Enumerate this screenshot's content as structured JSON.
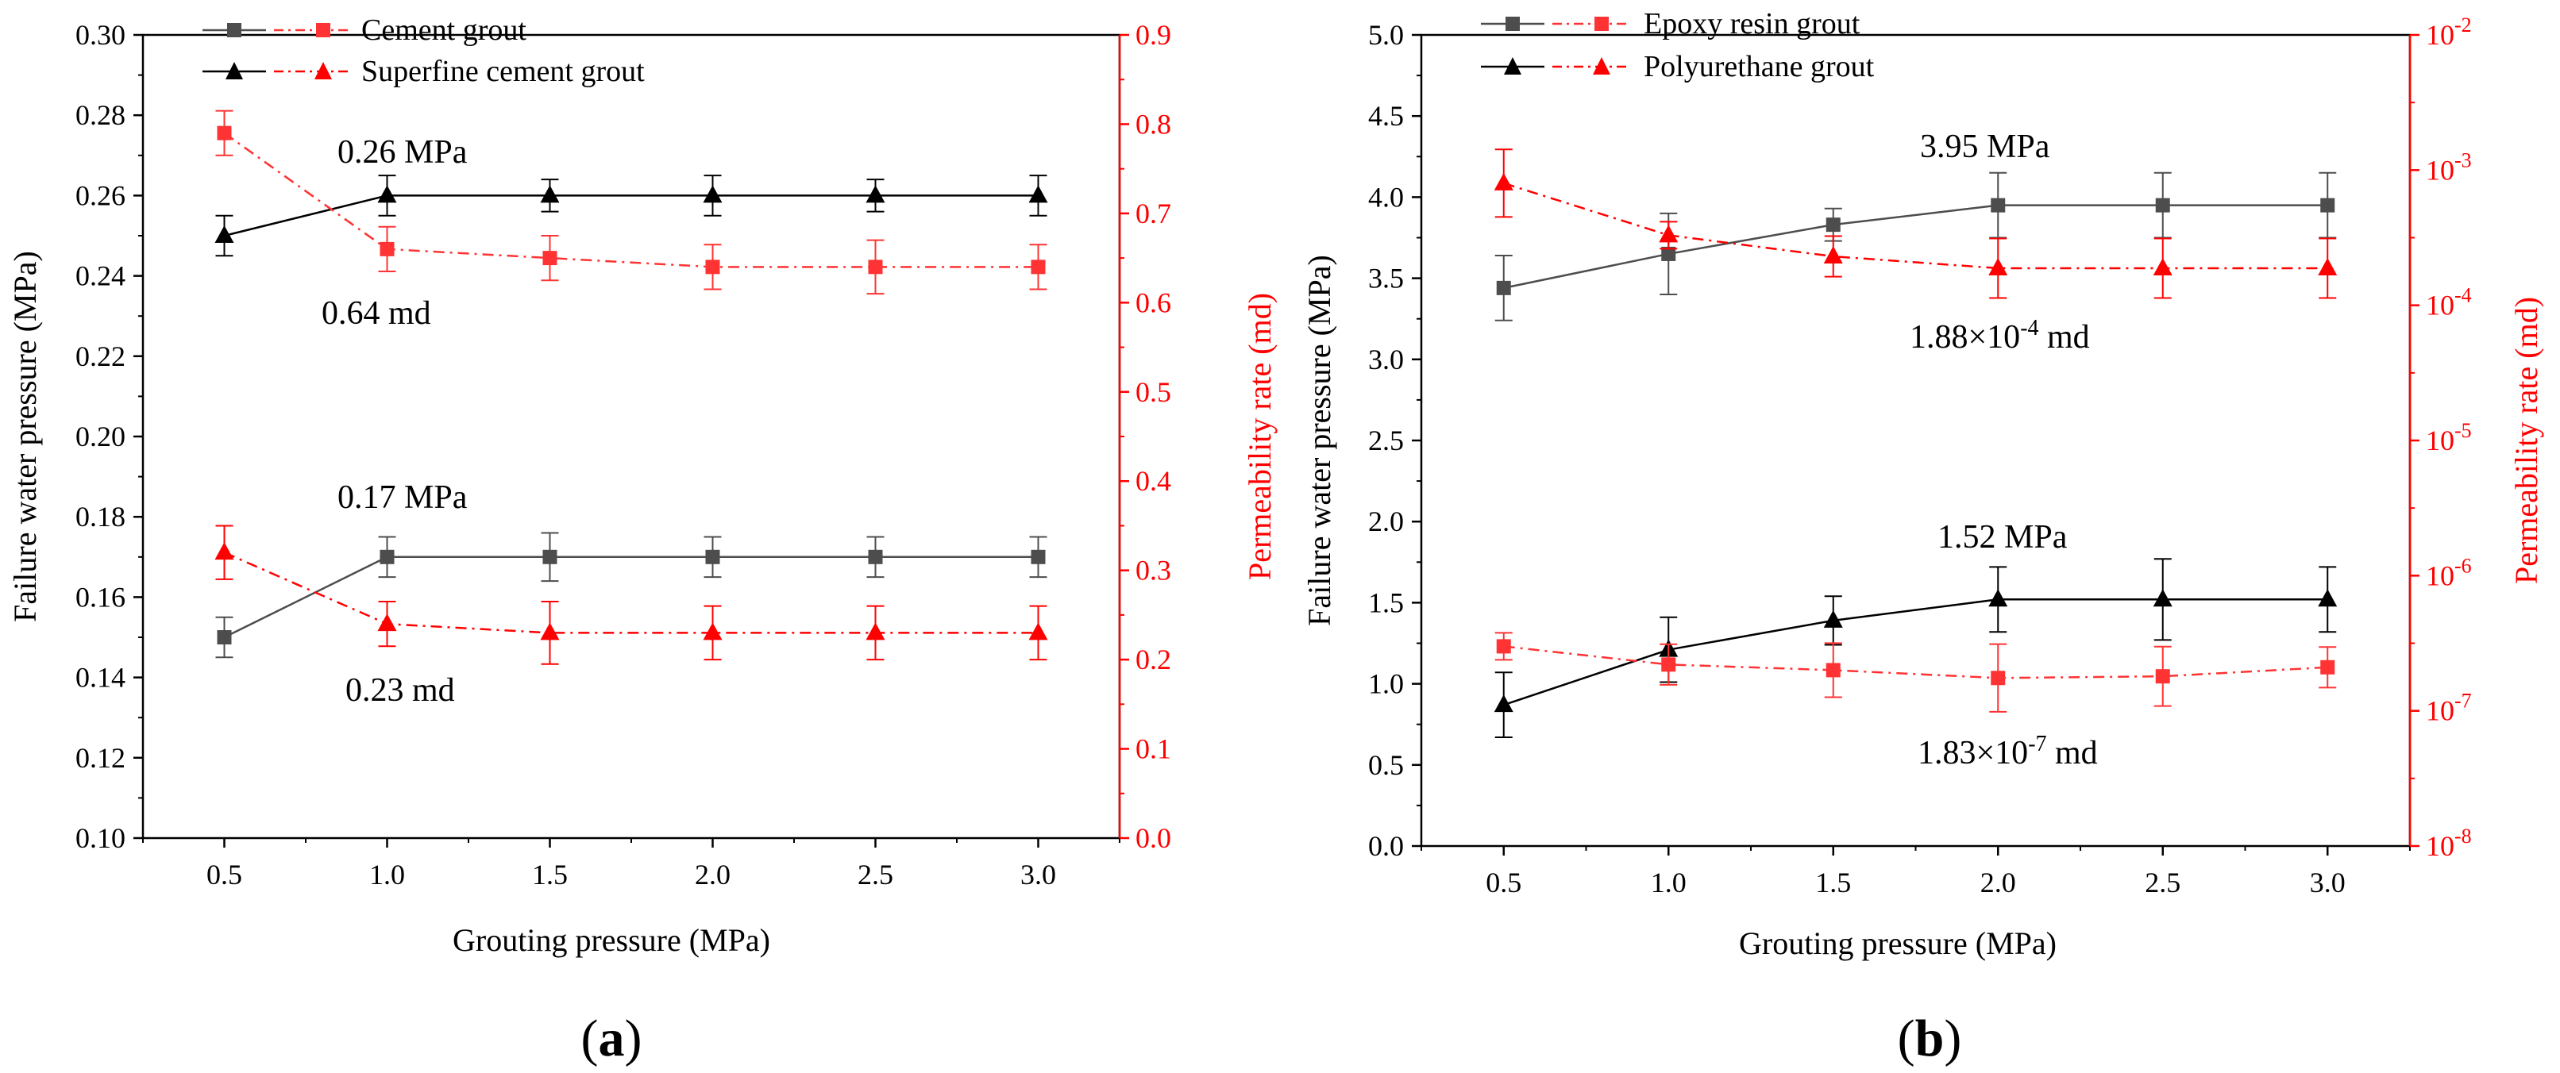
{
  "chart_data": [
    {
      "type": "line",
      "panel_label": "(a)",
      "panel_letter": "a",
      "xlabel": "Grouting pressure (MPa)",
      "ylabel": "Failure water pressure (MPa)",
      "y2label": "Permeability rate (md)",
      "x": [
        0.5,
        1.0,
        1.5,
        2.0,
        2.5,
        3.0
      ],
      "x_tick_labels": [
        "0.5",
        "1.0",
        "1.5",
        "2.0",
        "2.5",
        "3.0"
      ],
      "xlim": [
        0.25,
        3.25
      ],
      "ylim": [
        0.1,
        0.3
      ],
      "y_tick_labels": [
        "0.10",
        "0.12",
        "0.14",
        "0.16",
        "0.18",
        "0.20",
        "0.22",
        "0.24",
        "0.26",
        "0.28",
        "0.30"
      ],
      "y2lim": [
        0.0,
        0.9
      ],
      "y2_scale": "linear",
      "y2_tick_labels": [
        "0.0",
        "0.1",
        "0.2",
        "0.3",
        "0.4",
        "0.5",
        "0.6",
        "0.7",
        "0.8",
        "0.9"
      ],
      "legend": [
        {
          "label": "Cement grout",
          "marker": "square"
        },
        {
          "label": "Superfine cement grout",
          "marker": "triangle"
        }
      ],
      "series": [
        {
          "name": "Cement grout – failure water pressure",
          "axis": "left",
          "marker": "square",
          "color": "#4d4d4d",
          "values": [
            0.15,
            0.17,
            0.17,
            0.17,
            0.17,
            0.17
          ],
          "errors": [
            0.005,
            0.005,
            0.006,
            0.005,
            0.005,
            0.005
          ]
        },
        {
          "name": "Superfine cement grout – failure water pressure",
          "axis": "left",
          "marker": "triangle",
          "color": "#000000",
          "values": [
            0.25,
            0.26,
            0.26,
            0.26,
            0.26,
            0.26
          ],
          "errors": [
            0.005,
            0.005,
            0.004,
            0.005,
            0.004,
            0.005
          ]
        },
        {
          "name": "Cement grout – permeability rate",
          "axis": "right",
          "marker": "square",
          "color": "#ff3333",
          "dashed": true,
          "values": [
            0.79,
            0.66,
            0.65,
            0.64,
            0.64,
            0.64
          ],
          "errors": [
            0.025,
            0.025,
            0.025,
            0.025,
            0.03,
            0.025
          ]
        },
        {
          "name": "Superfine cement grout – permeability rate",
          "axis": "right",
          "marker": "triangle",
          "color": "#ff0000",
          "dashed": true,
          "values": [
            0.32,
            0.24,
            0.23,
            0.23,
            0.23,
            0.23
          ],
          "errors": [
            0.03,
            0.025,
            0.035,
            0.03,
            0.03,
            0.03
          ]
        }
      ],
      "annotations": [
        "0.26 MPa",
        "0.64 md",
        "0.17 MPa",
        "0.23 md"
      ]
    },
    {
      "type": "line",
      "panel_label": "(b)",
      "panel_letter": "b",
      "xlabel": "Grouting pressure (MPa)",
      "ylabel": "Failure water pressure (MPa)",
      "y2label": "Permeability rate (md)",
      "x": [
        0.5,
        1.0,
        1.5,
        2.0,
        2.5,
        3.0
      ],
      "x_tick_labels": [
        "0.5",
        "1.0",
        "1.5",
        "2.0",
        "2.5",
        "3.0"
      ],
      "xlim": [
        0.25,
        3.25
      ],
      "ylim": [
        0.0,
        5.0
      ],
      "y_tick_labels": [
        "0.0",
        "0.5",
        "1.0",
        "1.5",
        "2.0",
        "2.5",
        "3.0",
        "3.5",
        "4.0",
        "4.5",
        "5.0"
      ],
      "y2lim": [
        1e-08,
        0.01
      ],
      "y2_scale": "log",
      "y2_tick_labels": [
        "10-8",
        "10-7",
        "10-6",
        "10-5",
        "10-4",
        "10-3",
        "10-2"
      ],
      "y2_tick_base": "10",
      "y2_tick_exponents": [
        "-8",
        "-7",
        "-6",
        "-5",
        "-4",
        "-3",
        "-2"
      ],
      "legend": [
        {
          "label": "Epoxy resin grout",
          "marker": "square"
        },
        {
          "label": "Polyurethane grout",
          "marker": "triangle"
        }
      ],
      "series": [
        {
          "name": "Epoxy resin grout – failure water pressure",
          "axis": "left",
          "marker": "square",
          "color": "#4d4d4d",
          "values": [
            3.44,
            3.65,
            3.83,
            3.95,
            3.95,
            3.95
          ],
          "errors": [
            0.2,
            0.25,
            0.1,
            0.2,
            0.2,
            0.2
          ]
        },
        {
          "name": "Polyurethane grout – failure water pressure",
          "axis": "left",
          "marker": "triangle",
          "color": "#000000",
          "values": [
            0.87,
            1.21,
            1.39,
            1.52,
            1.52,
            1.52
          ],
          "errors": [
            0.2,
            0.2,
            0.15,
            0.2,
            0.25,
            0.2
          ]
        },
        {
          "name": "Epoxy resin grout – permeability rate",
          "axis": "right",
          "marker": "square",
          "color": "#ff3333",
          "dashed": true,
          "values": [
            3e-07,
            2.2e-07,
            2e-07,
            1.75e-07,
            1.8e-07,
            2.1e-07
          ],
          "errors_log": [
            0.1,
            0.15,
            0.2,
            0.25,
            0.22,
            0.15
          ]
        },
        {
          "name": "Polyurethane grout – permeability rate",
          "axis": "right",
          "marker": "triangle",
          "color": "#ff0000",
          "dashed": true,
          "values": [
            0.0008,
            0.00033,
            0.00023,
            0.000188,
            0.000188,
            0.000188
          ],
          "errors_log": [
            0.25,
            0.1,
            0.15,
            0.22,
            0.22,
            0.22
          ]
        }
      ],
      "annotations": [
        "3.95 MPa",
        "1.88×10",
        "-4",
        " md",
        "1.52 MPa",
        "1.83×10",
        "-7",
        " md"
      ]
    }
  ]
}
